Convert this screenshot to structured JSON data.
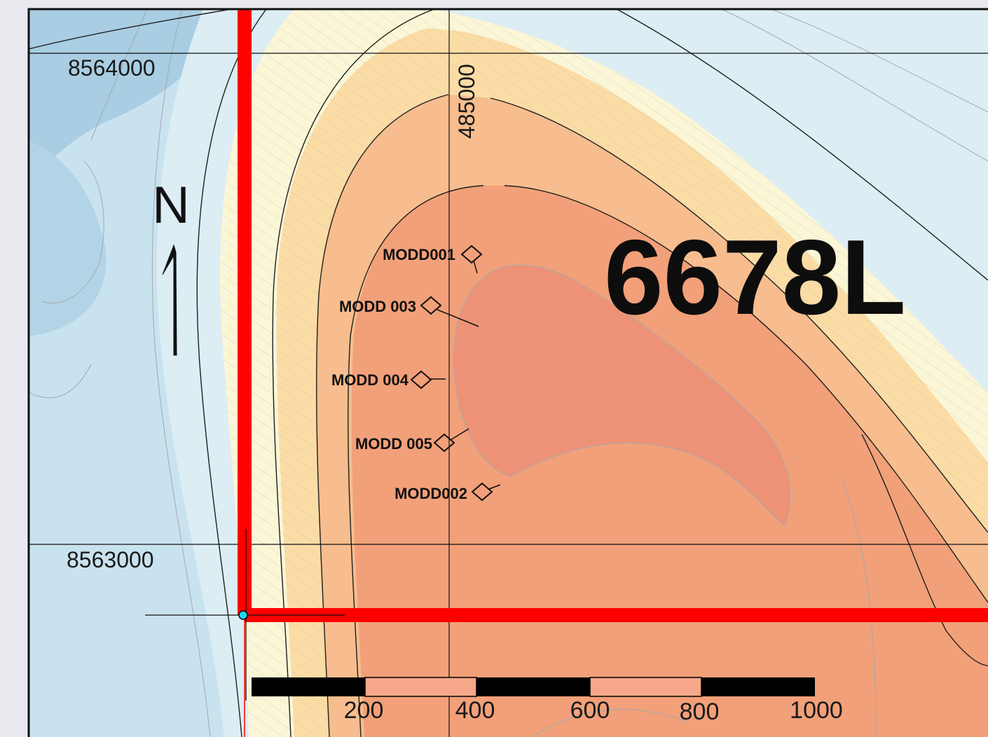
{
  "map": {
    "grid_labels": {
      "northing_upper": "8564000",
      "northing_lower": "8563000",
      "easting": "485000"
    },
    "north_arrow": {
      "letter": "N"
    },
    "area_label": "6678L",
    "drillholes": [
      {
        "name": "MODD001"
      },
      {
        "name": "MODD 003"
      },
      {
        "name": "MODD 004"
      },
      {
        "name": "MODD 005"
      },
      {
        "name": "MODD002"
      }
    ],
    "scale_bar": {
      "labels": [
        "200",
        "400",
        "600",
        "800",
        "1000"
      ]
    },
    "colors": {
      "boundary": "#ff0000",
      "contour_major": "#1a1a1a",
      "contour_minor": "#9aa0a6",
      "low": "#bcd9ea",
      "mid": "#fbf6d6",
      "high": "#f2a079",
      "peak": "#ee9277",
      "vertex_marker": "#19d6f0"
    }
  }
}
